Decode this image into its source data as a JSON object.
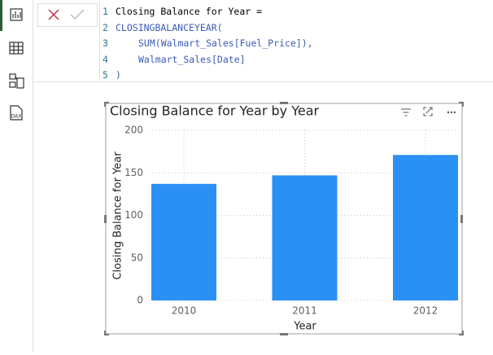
{
  "editor": {
    "lines": [
      {
        "number": 1,
        "code": "Closing Balance for Year =",
        "indent": 0,
        "kind": "plain"
      },
      {
        "number": 2,
        "code": "CLOSINGBALANCEYEAR(",
        "indent": 0,
        "kind": "function"
      },
      {
        "number": 3,
        "code": "SUM(Walmart_Sales[Fuel_Price]),",
        "indent": 1,
        "kind": "function"
      },
      {
        "number": 4,
        "code": "Walmart_Sales[Date]",
        "indent": 1,
        "kind": "column"
      },
      {
        "number": 5,
        "code": ")",
        "indent": 0,
        "kind": "function"
      }
    ]
  },
  "chart_data": {
    "type": "bar",
    "title": "Closing Balance for Year by Year",
    "categories": [
      "2010",
      "2011",
      "2012"
    ],
    "values": [
      137,
      147,
      171
    ],
    "color": "#2b90f5",
    "ylim": [
      0,
      200
    ],
    "yticks": [
      0,
      50,
      100,
      150,
      200
    ],
    "grid": true,
    "x_label": "Year",
    "y_label": "Closing Balance for Year"
  }
}
